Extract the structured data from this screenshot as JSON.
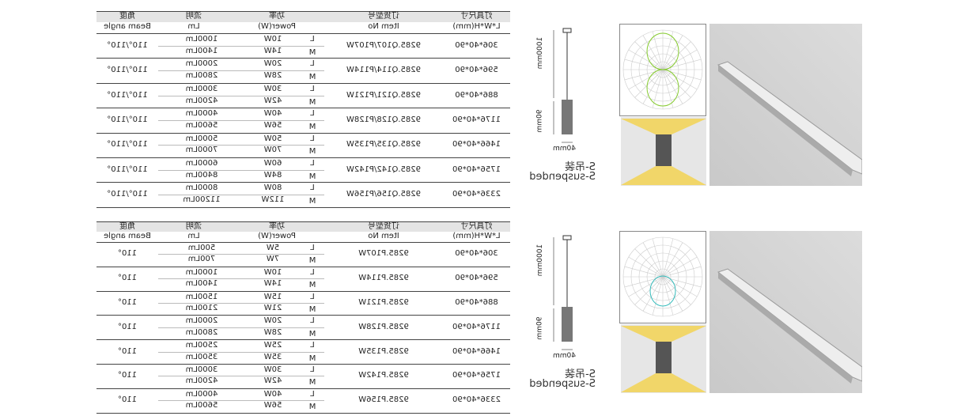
{
  "headers": {
    "size": "灯具尺寸",
    "size_en": "L*W*H(mm)",
    "item": "订货型号",
    "item_en": "Item No",
    "power": "功率",
    "power_en": "Power(W)",
    "lumen": "流明",
    "lumen_en": "Lm",
    "angle": "角度",
    "angle_en": "Beam angle"
  },
  "levels": [
    "L",
    "M"
  ],
  "tables": [
    {
      "rows": [
        {
          "size": "306*40*90",
          "item": "9285.Q107/P107W",
          "power": [
            "10W",
            "14W"
          ],
          "lumen": [
            "1000Lm",
            "1400Lm"
          ],
          "angle": "110°/110°"
        },
        {
          "size": "596*40*90",
          "item": "9285.Q114/P114W",
          "power": [
            "20W",
            "28W"
          ],
          "lumen": [
            "2000Lm",
            "2800Lm"
          ],
          "angle": "110°/110°"
        },
        {
          "size": "886*40*90",
          "item": "9285.Q121/P121W",
          "power": [
            "30W",
            "42W"
          ],
          "lumen": [
            "3000Lm",
            "4200Lm"
          ],
          "angle": "110°/110°"
        },
        {
          "size": "1176*40*90",
          "item": "9285.Q128/P128W",
          "power": [
            "40W",
            "56W"
          ],
          "lumen": [
            "4000Lm",
            "5600Lm"
          ],
          "angle": "110°/110°"
        },
        {
          "size": "1466*40*90",
          "item": "9285.Q135/P135W",
          "power": [
            "50W",
            "70W"
          ],
          "lumen": [
            "5000Lm",
            "7000Lm"
          ],
          "angle": "110°/110°"
        },
        {
          "size": "1756*40*90",
          "item": "9285.Q142/P142W",
          "power": [
            "60W",
            "84W"
          ],
          "lumen": [
            "6000Lm",
            "8400Lm"
          ],
          "angle": "110°/110°"
        },
        {
          "size": "2336*40*90",
          "item": "9285.Q156/P156W",
          "power": [
            "80W",
            "112W"
          ],
          "lumen": [
            "8000Lm",
            "11200Lm"
          ],
          "angle": "110°/110°"
        }
      ]
    },
    {
      "rows": [
        {
          "size": "306*40*90",
          "item": "9285.P107W",
          "power": [
            "5W",
            "7W"
          ],
          "lumen": [
            "500Lm",
            "700Lm"
          ],
          "angle": "110°"
        },
        {
          "size": "596*40*90",
          "item": "9285.P114W",
          "power": [
            "10W",
            "14W"
          ],
          "lumen": [
            "1000Lm",
            "1400Lm"
          ],
          "angle": "110°"
        },
        {
          "size": "886*40*90",
          "item": "9285.P121W",
          "power": [
            "15W",
            "21W"
          ],
          "lumen": [
            "1500Lm",
            "2100Lm"
          ],
          "angle": "110°"
        },
        {
          "size": "1176*40*90",
          "item": "9285.P128W",
          "power": [
            "20W",
            "28W"
          ],
          "lumen": [
            "2000Lm",
            "2800Lm"
          ],
          "angle": "110°"
        },
        {
          "size": "1466*40*90",
          "item": "9285.P135W",
          "power": [
            "25W",
            "35W"
          ],
          "lumen": [
            "2500Lm",
            "3500Lm"
          ],
          "angle": "110°"
        },
        {
          "size": "1756*40*90",
          "item": "9285.P142W",
          "power": [
            "30W",
            "42W"
          ],
          "lumen": [
            "3000Lm",
            "4200Lm"
          ],
          "angle": "110°"
        },
        {
          "size": "2336*40*90",
          "item": "9285.P156W",
          "power": [
            "40W",
            "56W"
          ],
          "lumen": [
            "4000Lm",
            "5600Lm"
          ],
          "angle": "110°"
        }
      ]
    }
  ],
  "drawing": {
    "height": "1000mm",
    "depth": "90mm",
    "width": "40mm",
    "mount": "S-吊装",
    "mount_en": "S-suspended"
  }
}
